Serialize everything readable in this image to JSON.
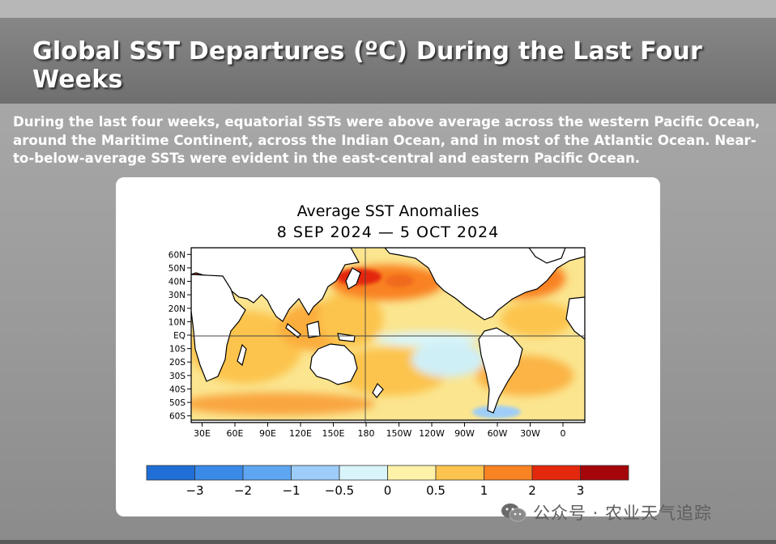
{
  "slide": {
    "title": "Global SST Departures (ºC) During the Last Four Weeks",
    "description": "During the last four weeks, equatorial SSTs were above average across the western Pacific Ocean, around the Maritime Continent, across the Indian Ocean, and in most of the Atlantic Ocean. Near-to-below-average SSTs were evident in the east-central and eastern Pacific Ocean."
  },
  "watermark": {
    "text": "公众号 · 农业天气追踪"
  },
  "chart_data": {
    "type": "heatmap",
    "title": "Average SST Anomalies",
    "subtitle": "8 SEP 2024 — 5 OCT 2024",
    "x_ticks": [
      "30E",
      "60E",
      "90E",
      "120E",
      "150E",
      "180",
      "150W",
      "120W",
      "90W",
      "60W",
      "30W",
      "0"
    ],
    "y_ticks": [
      "60N",
      "50N",
      "40N",
      "30N",
      "20N",
      "10N",
      "EQ",
      "10S",
      "20S",
      "30S",
      "40S",
      "50S",
      "60S"
    ],
    "x_range": [
      "20E",
      "20E (wrapped)"
    ],
    "y_range": [
      "65N",
      "65S"
    ],
    "units": "ºC",
    "colorbar": {
      "bounds": [
        -5,
        -3,
        -2,
        -1,
        -0.5,
        0,
        0.5,
        1,
        2,
        3,
        5
      ],
      "tick_labels": [
        "−3",
        "−2",
        "−1",
        "−0.5",
        "0",
        "0.5",
        "1",
        "2",
        "3"
      ],
      "colors": [
        "#1f6fd6",
        "#3a8ae8",
        "#5ea6f2",
        "#9dcdf8",
        "#d9f5fb",
        "#fdf2a8",
        "#fcc44e",
        "#f98223",
        "#e3280e",
        "#a5060a"
      ]
    },
    "regions": [
      {
        "name": "Western Pacific (equatorial)",
        "anomaly": 1
      },
      {
        "name": "Maritime Continent",
        "anomaly": 1
      },
      {
        "name": "Indian Ocean",
        "anomaly": 0.8
      },
      {
        "name": "Atlantic Ocean",
        "anomaly": 1
      },
      {
        "name": "North Pacific (40N)",
        "anomaly": 2.5
      },
      {
        "name": "North Atlantic (40N)",
        "anomaly": 2
      },
      {
        "name": "East-central Pacific (equatorial)",
        "anomaly": -0.7
      },
      {
        "name": "Eastern Pacific (equatorial)",
        "anomaly": -0.3
      }
    ]
  }
}
